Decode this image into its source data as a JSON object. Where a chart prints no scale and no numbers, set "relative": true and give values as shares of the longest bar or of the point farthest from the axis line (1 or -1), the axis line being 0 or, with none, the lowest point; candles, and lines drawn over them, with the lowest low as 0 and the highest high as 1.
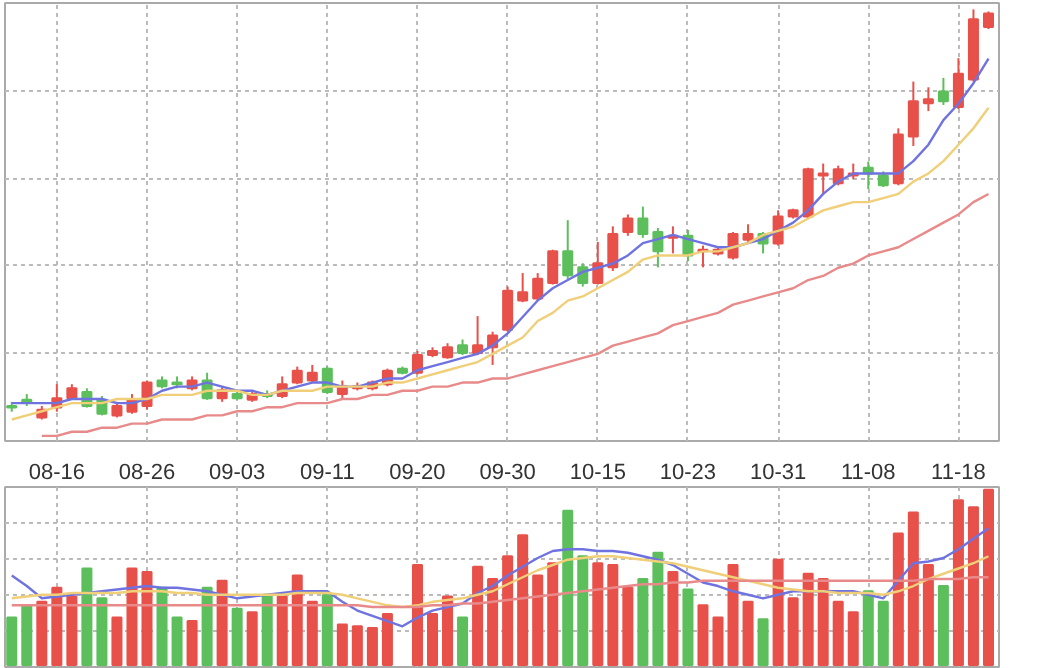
{
  "chart_data": [
    {
      "type": "candlestick",
      "relative": true,
      "grid": true,
      "categories": [
        null,
        null,
        null,
        "08-16",
        null,
        null,
        null,
        null,
        null,
        "08-26",
        null,
        null,
        null,
        null,
        null,
        "09-03",
        null,
        null,
        null,
        null,
        null,
        "09-11",
        null,
        null,
        null,
        null,
        null,
        "09-20",
        null,
        null,
        null,
        null,
        null,
        "09-30",
        null,
        null,
        null,
        null,
        null,
        "10-15",
        null,
        null,
        null,
        null,
        null,
        "10-23",
        null,
        null,
        null,
        null,
        null,
        "10-31",
        null,
        null,
        null,
        null,
        null,
        "11-08",
        null,
        null,
        null,
        null,
        null,
        "11-18",
        null,
        null
      ],
      "ohlc": [
        [
          0.033,
          0.043,
          0.019,
          0.029
        ],
        [
          0.048,
          0.062,
          0.033,
          0.043
        ],
        [
          0.005,
          0.033,
          0,
          0.024
        ],
        [
          0.029,
          0.086,
          0.019,
          0.052
        ],
        [
          0.052,
          0.086,
          0.048,
          0.076
        ],
        [
          0.067,
          0.076,
          0.029,
          0.033
        ],
        [
          0.048,
          0.057,
          0.01,
          0.014
        ],
        [
          0.01,
          0.043,
          0.005,
          0.033
        ],
        [
          0.019,
          0.062,
          0.014,
          0.048
        ],
        [
          0.033,
          0.095,
          0.024,
          0.09
        ],
        [
          0.095,
          0.105,
          0.076,
          0.081
        ],
        [
          0.09,
          0.105,
          0.076,
          0.086
        ],
        [
          0.076,
          0.105,
          0.071,
          0.095
        ],
        [
          0.095,
          0.114,
          0.048,
          0.052
        ],
        [
          0.052,
          0.081,
          0.043,
          0.071
        ],
        [
          0.062,
          0.067,
          0.048,
          0.052
        ],
        [
          0.048,
          0.067,
          0.043,
          0.062
        ],
        [
          0.062,
          0.071,
          0.052,
          0.057
        ],
        [
          0.057,
          0.105,
          0.052,
          0.086
        ],
        [
          0.09,
          0.129,
          0.086,
          0.119
        ],
        [
          0.095,
          0.133,
          0.09,
          0.114
        ],
        [
          0.124,
          0.129,
          0.062,
          0.067
        ],
        [
          0.062,
          0.095,
          0.052,
          0.081
        ],
        [
          0.076,
          0.09,
          0.071,
          0.081
        ],
        [
          0.076,
          0.095,
          0.071,
          0.09
        ],
        [
          0.086,
          0.124,
          0.081,
          0.119
        ],
        [
          0.124,
          0.129,
          0.11,
          0.114
        ],
        [
          0.114,
          0.167,
          0.11,
          0.157
        ],
        [
          0.157,
          0.176,
          0.152,
          0.167
        ],
        [
          0.152,
          0.186,
          0.148,
          0.176
        ],
        [
          0.181,
          0.195,
          0.157,
          0.162
        ],
        [
          0.162,
          0.252,
          0.157,
          0.181
        ],
        [
          0.176,
          0.214,
          0.133,
          0.205
        ],
        [
          0.219,
          0.324,
          0.214,
          0.314
        ],
        [
          0.29,
          0.357,
          0.286,
          0.31
        ],
        [
          0.295,
          0.357,
          0.29,
          0.343
        ],
        [
          0.333,
          0.414,
          0.329,
          0.41
        ],
        [
          0.41,
          0.486,
          0.343,
          0.352
        ],
        [
          0.371,
          0.381,
          0.324,
          0.333
        ],
        [
          0.333,
          0.433,
          0.329,
          0.381
        ],
        [
          0.371,
          0.471,
          0.362,
          0.452
        ],
        [
          0.457,
          0.5,
          0.448,
          0.49
        ],
        [
          0.49,
          0.519,
          0.443,
          0.452
        ],
        [
          0.457,
          0.467,
          0.371,
          0.41
        ],
        [
          0.443,
          0.471,
          0.405,
          0.448
        ],
        [
          0.448,
          0.462,
          0.386,
          0.4
        ],
        [
          0.41,
          0.424,
          0.371,
          0.414
        ],
        [
          0.405,
          0.419,
          0.4,
          0.414
        ],
        [
          0.395,
          0.457,
          0.39,
          0.452
        ],
        [
          0.438,
          0.476,
          0.433,
          0.452
        ],
        [
          0.452,
          0.457,
          0.405,
          0.429
        ],
        [
          0.429,
          0.51,
          0.424,
          0.495
        ],
        [
          0.495,
          0.514,
          0.49,
          0.51
        ],
        [
          0.495,
          0.614,
          0.49,
          0.61
        ],
        [
          0.595,
          0.624,
          0.548,
          0.6
        ],
        [
          0.576,
          0.619,
          0.571,
          0.61
        ],
        [
          0.595,
          0.624,
          0.586,
          0.6
        ],
        [
          0.614,
          0.629,
          0.562,
          0.6
        ],
        [
          0.595,
          0.605,
          0.567,
          0.571
        ],
        [
          0.576,
          0.71,
          0.571,
          0.695
        ],
        [
          0.69,
          0.824,
          0.667,
          0.776
        ],
        [
          0.771,
          0.81,
          0.752,
          0.781
        ],
        [
          0.8,
          0.833,
          0.767,
          0.776
        ],
        [
          0.762,
          0.881,
          0.757,
          0.843
        ],
        [
          0.829,
          1,
          0.824,
          0.976
        ],
        [
          0.957,
          0.995,
          0.952,
          0.99
        ]
      ],
      "colors": [
        "#5cbf5c",
        "#5cbf5c",
        "#e8504a",
        "#e8504a",
        "#e8504a",
        "#5cbf5c",
        "#5cbf5c",
        "#e8504a",
        "#e8504a",
        "#e8504a",
        "#5cbf5c",
        "#5cbf5c",
        "#e8504a",
        "#5cbf5c",
        "#e8504a",
        "#5cbf5c",
        "#e8504a",
        "#5cbf5c",
        "#e8504a",
        "#e8504a",
        "#e8504a",
        "#5cbf5c",
        "#e8504a",
        "#e8504a",
        "#e8504a",
        "#e8504a",
        "#5cbf5c",
        "#e8504a",
        "#e8504a",
        "#e8504a",
        "#5cbf5c",
        "#e8504a",
        "#e8504a",
        "#e8504a",
        "#e8504a",
        "#e8504a",
        "#e8504a",
        "#5cbf5c",
        "#5cbf5c",
        "#e8504a",
        "#e8504a",
        "#e8504a",
        "#5cbf5c",
        "#5cbf5c",
        "#e8504a",
        "#5cbf5c",
        "#e8504a",
        "#e8504a",
        "#e8504a",
        "#e8504a",
        "#5cbf5c",
        "#e8504a",
        "#e8504a",
        "#e8504a",
        "#e8504a",
        "#e8504a",
        "#e8504a",
        "#5cbf5c",
        "#5cbf5c",
        "#e8504a",
        "#e8504a",
        "#e8504a",
        "#5cbf5c",
        "#e8504a",
        "#e8504a",
        "#e8504a"
      ],
      "series": [
        {
          "type": "line",
          "color": "#6f73e0",
          "values": [
            0.04,
            0.04,
            0.04,
            0.04,
            0.05,
            0.05,
            0.05,
            0.04,
            0.04,
            0.05,
            0.07,
            0.08,
            0.08,
            0.09,
            0.08,
            0.07,
            0.07,
            0.06,
            0.07,
            0.08,
            0.09,
            0.09,
            0.08,
            0.08,
            0.09,
            0.1,
            0.1,
            0.12,
            0.13,
            0.14,
            0.15,
            0.16,
            0.18,
            0.21,
            0.25,
            0.29,
            0.32,
            0.34,
            0.36,
            0.37,
            0.38,
            0.4,
            0.43,
            0.44,
            0.45,
            0.44,
            0.43,
            0.42,
            0.42,
            0.43,
            0.44,
            0.46,
            0.48,
            0.51,
            0.55,
            0.58,
            0.6,
            0.6,
            0.6,
            0.6,
            0.63,
            0.67,
            0.73,
            0.77,
            0.82,
            0.88
          ]
        },
        {
          "type": "line",
          "color": "#f0cf78",
          "values": [
            0.0,
            0.01,
            0.02,
            0.03,
            0.04,
            0.04,
            0.04,
            0.05,
            0.05,
            0.05,
            0.06,
            0.06,
            0.06,
            0.07,
            0.07,
            0.07,
            0.06,
            0.06,
            0.07,
            0.07,
            0.07,
            0.08,
            0.08,
            0.08,
            0.08,
            0.09,
            0.09,
            0.1,
            0.11,
            0.12,
            0.13,
            0.14,
            0.16,
            0.18,
            0.2,
            0.24,
            0.26,
            0.29,
            0.3,
            0.32,
            0.34,
            0.36,
            0.39,
            0.4,
            0.4,
            0.4,
            0.41,
            0.41,
            0.42,
            0.43,
            0.45,
            0.46,
            0.47,
            0.49,
            0.51,
            0.52,
            0.53,
            0.53,
            0.54,
            0.55,
            0.58,
            0.6,
            0.63,
            0.67,
            0.71,
            0.76
          ]
        },
        {
          "type": "line",
          "color": "#e88a8a",
          "values": [
            null,
            null,
            -0.04,
            -0.04,
            -0.03,
            -0.03,
            -0.02,
            -0.02,
            -0.01,
            -0.01,
            0.0,
            0.0,
            0.0,
            0.01,
            0.01,
            0.02,
            0.02,
            0.03,
            0.03,
            0.04,
            0.04,
            0.04,
            0.05,
            0.05,
            0.06,
            0.06,
            0.07,
            0.07,
            0.08,
            0.08,
            0.09,
            0.09,
            0.1,
            0.1,
            0.11,
            0.12,
            0.13,
            0.14,
            0.15,
            0.16,
            0.18,
            0.19,
            0.2,
            0.21,
            0.23,
            0.24,
            0.25,
            0.26,
            0.28,
            0.29,
            0.3,
            0.31,
            0.32,
            0.34,
            0.35,
            0.37,
            0.38,
            0.4,
            0.41,
            0.42,
            0.44,
            0.46,
            0.48,
            0.5,
            0.53,
            0.55
          ]
        }
      ]
    },
    {
      "type": "bar",
      "relative": true,
      "grid": true,
      "tick_labels": false,
      "categories": [
        null,
        null,
        null,
        null,
        null,
        null,
        null,
        null,
        null,
        null,
        null,
        null,
        null,
        null,
        null,
        null,
        null,
        null,
        null,
        null,
        null,
        null,
        null,
        null,
        null,
        null,
        null,
        null,
        null,
        null,
        null,
        null,
        null,
        null,
        null,
        null,
        null,
        null,
        null,
        null,
        null,
        null,
        null,
        null,
        null,
        null,
        null,
        null,
        null,
        null,
        null,
        null,
        null,
        null,
        null,
        null,
        null,
        null,
        null,
        null,
        null,
        null,
        null,
        null,
        null,
        null
      ],
      "values": [
        0.27,
        0.34,
        0.36,
        0.44,
        0.39,
        0.55,
        0.38,
        0.27,
        0.55,
        0.53,
        0.44,
        0.27,
        0.25,
        0.44,
        0.48,
        0.32,
        0.3,
        0.4,
        0.39,
        0.51,
        0.36,
        0.4,
        0.23,
        0.22,
        0.21,
        0.29,
        null,
        0.57,
        0.29,
        0.39,
        0.27,
        0.56,
        0.49,
        0.62,
        0.74,
        0.51,
        0.58,
        0.88,
        0.62,
        0.58,
        0.57,
        0.44,
        0.49,
        0.64,
        0.53,
        0.43,
        0.34,
        0.27,
        0.57,
        0.36,
        0.26,
        0.6,
        0.38,
        0.52,
        0.49,
        0.36,
        0.3,
        0.42,
        0.36,
        0.75,
        0.87,
        0.57,
        0.45,
        0.94,
        0.9,
        1
      ],
      "colors": [
        "#5cbf5c",
        "#5cbf5c",
        "#e8504a",
        "#e8504a",
        "#e8504a",
        "#5cbf5c",
        "#5cbf5c",
        "#e8504a",
        "#e8504a",
        "#e8504a",
        "#5cbf5c",
        "#5cbf5c",
        "#e8504a",
        "#5cbf5c",
        "#e8504a",
        "#5cbf5c",
        "#e8504a",
        "#5cbf5c",
        "#e8504a",
        "#e8504a",
        "#e8504a",
        "#5cbf5c",
        "#e8504a",
        "#e8504a",
        "#e8504a",
        "#e8504a",
        "#5cbf5c",
        "#e8504a",
        "#e8504a",
        "#e8504a",
        "#5cbf5c",
        "#e8504a",
        "#e8504a",
        "#e8504a",
        "#e8504a",
        "#e8504a",
        "#e8504a",
        "#5cbf5c",
        "#5cbf5c",
        "#e8504a",
        "#e8504a",
        "#e8504a",
        "#5cbf5c",
        "#5cbf5c",
        "#e8504a",
        "#5cbf5c",
        "#e8504a",
        "#e8504a",
        "#e8504a",
        "#e8504a",
        "#5cbf5c",
        "#e8504a",
        "#e8504a",
        "#e8504a",
        "#e8504a",
        "#e8504a",
        "#e8504a",
        "#5cbf5c",
        "#5cbf5c",
        "#e8504a",
        "#e8504a",
        "#e8504a",
        "#5cbf5c",
        "#e8504a",
        "#e8504a",
        "#e8504a"
      ],
      "series": [
        {
          "type": "line",
          "color": "#6f73e0",
          "values": [
            0.51,
            0.45,
            0.38,
            0.39,
            0.4,
            0.41,
            0.42,
            0.43,
            0.44,
            0.45,
            0.44,
            0.44,
            0.43,
            0.42,
            0.4,
            0.38,
            0.39,
            0.4,
            0.41,
            0.42,
            0.42,
            0.42,
            0.36,
            0.31,
            0.28,
            0.25,
            0.22,
            0.27,
            0.31,
            0.33,
            0.35,
            0.41,
            0.45,
            0.51,
            0.56,
            0.61,
            0.65,
            0.66,
            0.66,
            0.65,
            0.65,
            0.64,
            0.62,
            0.6,
            0.57,
            0.52,
            0.47,
            0.45,
            0.42,
            0.4,
            0.38,
            0.4,
            0.42,
            0.42,
            0.42,
            0.42,
            0.42,
            0.4,
            0.38,
            0.48,
            0.58,
            0.59,
            0.61,
            0.66,
            0.72,
            0.78
          ]
        },
        {
          "type": "line",
          "color": "#f0cf78",
          "values": [
            0.38,
            0.39,
            0.4,
            0.4,
            0.41,
            0.41,
            0.41,
            0.41,
            0.42,
            0.42,
            0.42,
            0.41,
            0.41,
            0.4,
            0.4,
            0.4,
            0.4,
            0.4,
            0.4,
            0.41,
            0.41,
            0.41,
            0.4,
            0.38,
            0.36,
            0.34,
            0.33,
            0.34,
            0.36,
            0.37,
            0.38,
            0.4,
            0.42,
            0.46,
            0.5,
            0.54,
            0.57,
            0.6,
            0.61,
            0.62,
            0.62,
            0.61,
            0.6,
            0.59,
            0.58,
            0.56,
            0.54,
            0.52,
            0.5,
            0.48,
            0.46,
            0.44,
            0.43,
            0.42,
            0.42,
            0.41,
            0.41,
            0.41,
            0.4,
            0.42,
            0.45,
            0.49,
            0.52,
            0.55,
            0.58,
            0.62
          ]
        },
        {
          "type": "line",
          "color": "#e88a8a",
          "values": [
            0.34,
            0.34,
            0.34,
            0.34,
            0.34,
            0.34,
            0.34,
            0.34,
            0.34,
            0.34,
            0.34,
            0.34,
            0.34,
            0.34,
            0.34,
            0.34,
            0.34,
            0.34,
            0.34,
            0.34,
            0.34,
            0.34,
            0.34,
            0.34,
            0.33,
            0.33,
            0.33,
            0.33,
            0.34,
            0.34,
            0.35,
            0.35,
            0.36,
            0.37,
            0.38,
            0.39,
            0.4,
            0.41,
            0.42,
            0.43,
            0.44,
            0.45,
            0.46,
            0.46,
            0.47,
            0.47,
            0.48,
            0.48,
            0.48,
            0.48,
            0.48,
            0.48,
            0.48,
            0.48,
            0.48,
            0.48,
            0.48,
            0.48,
            0.48,
            0.48,
            0.48,
            0.49,
            0.49,
            0.49,
            0.5,
            0.5
          ]
        }
      ]
    }
  ]
}
